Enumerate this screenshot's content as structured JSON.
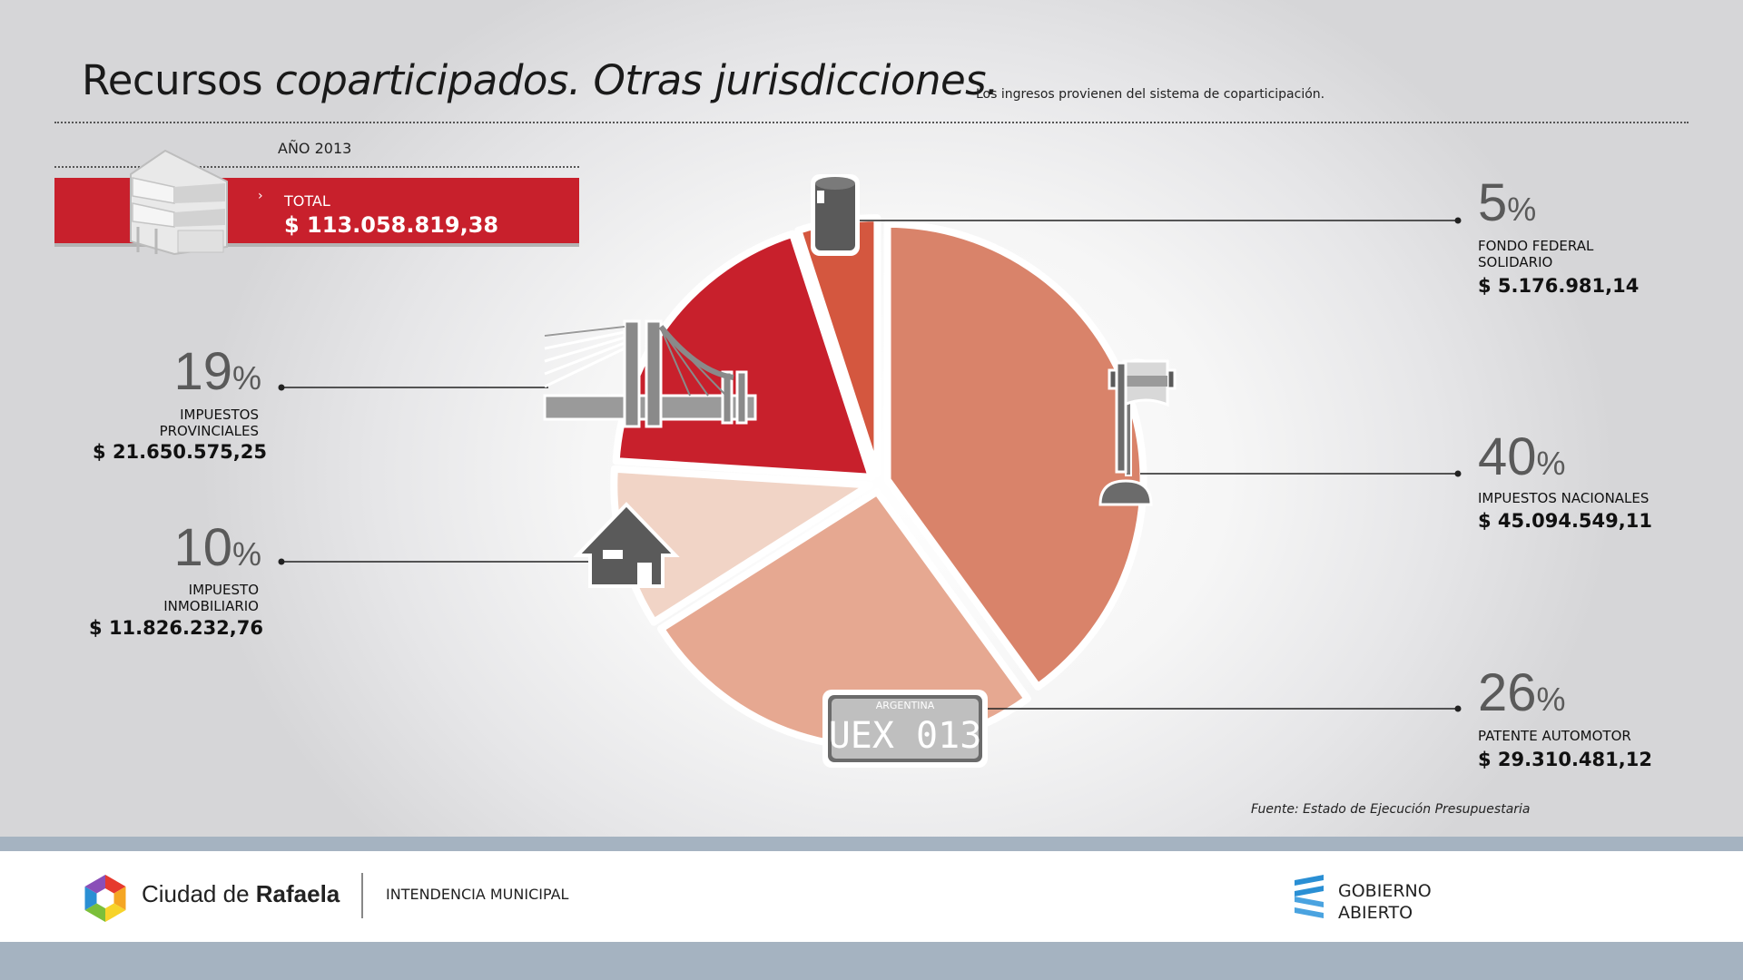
{
  "header": {
    "title_regular": "Recursos ",
    "title_italic": "coparticipados. Otras jurisdicciones.",
    "subtitle": "Los ingresos provienen del sistema de coparticipación."
  },
  "summary": {
    "year_label": "AÑO 2013",
    "chevron": "›",
    "total_label": "TOTAL",
    "total_value": "$ 113.058.819,38"
  },
  "chart_data": {
    "type": "pie",
    "slices": [
      {
        "label_lines": [
          "FONDO FEDERAL",
          "SOLIDARIO"
        ],
        "percent": 5,
        "percent_text": "5",
        "amount": "$ 5.176.981,14",
        "color": "#d4573f",
        "icon": "oil-barrel-icon"
      },
      {
        "label_lines": [
          "IMPUESTOS NACIONALES"
        ],
        "percent": 40,
        "percent_text": "40",
        "amount": "$ 45.094.549,11",
        "color": "#d9836a",
        "icon": "argentina-flag-icon"
      },
      {
        "label_lines": [
          "PATENTE AUTOMOTOR"
        ],
        "percent": 26,
        "percent_text": "26",
        "amount": "$ 29.310.481,12",
        "color": "#e6a891",
        "icon": "license-plate-icon"
      },
      {
        "label_lines": [
          "IMPUESTO",
          "INMOBILIARIO"
        ],
        "percent": 10,
        "percent_text": "10",
        "amount": "$ 11.826.232,76",
        "color": "#f1d4c6",
        "icon": "house-icon"
      },
      {
        "label_lines": [
          "IMPUESTOS",
          "PROVINCIALES"
        ],
        "percent": 19,
        "percent_text": "19",
        "amount": "$ 21.650.575,25",
        "color": "#c8202c",
        "icon": "bridge-icon"
      }
    ],
    "percent_sign": "%",
    "plate": {
      "country": "ARGENTINA",
      "number": "UEX 013"
    }
  },
  "source": "Fuente: Estado de Ejecución Presupuestaria",
  "footer": {
    "city_prefix": "Ciudad de ",
    "city_name": "Rafaela",
    "department": "INTENDENCIA MUNICIPAL",
    "gob_line1": "GOBIERNO",
    "gob_line2": "ABIERTO"
  }
}
